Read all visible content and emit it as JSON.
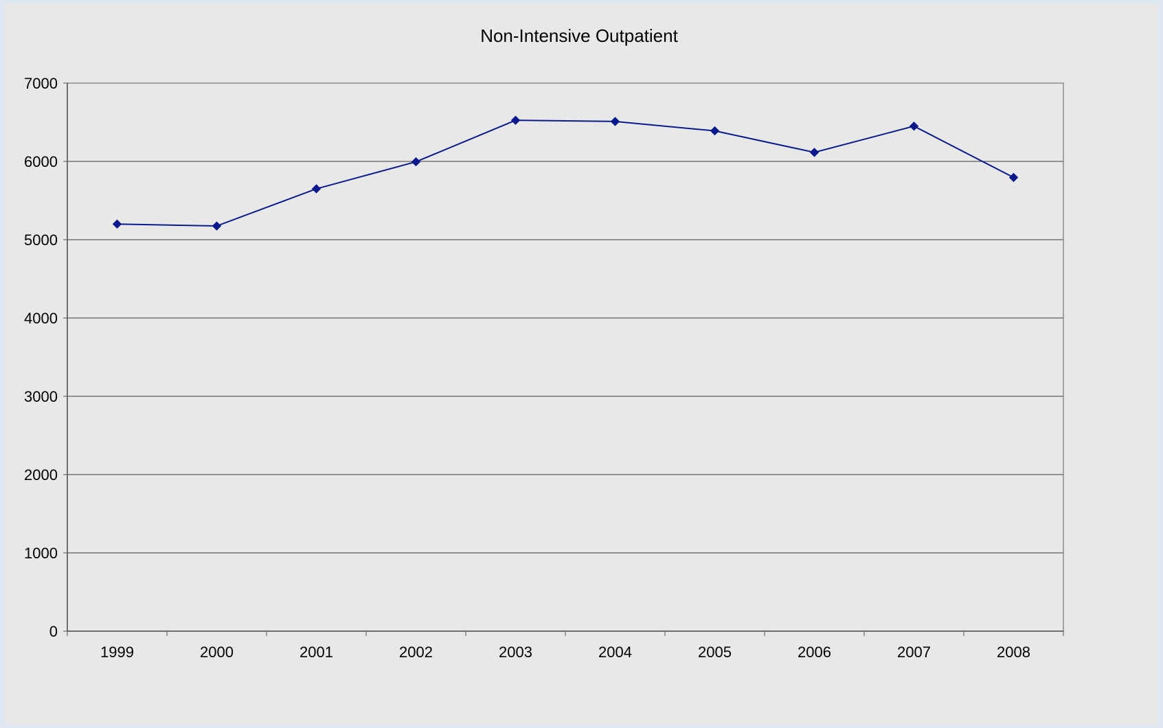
{
  "chart_data": {
    "type": "line",
    "title": "Non-Intensive Outpatient",
    "xlabel": "",
    "ylabel": "",
    "categories": [
      "1999",
      "2000",
      "2001",
      "2002",
      "2003",
      "2004",
      "2005",
      "2006",
      "2007",
      "2008"
    ],
    "series": [
      {
        "values": [
          5200,
          5175,
          5650,
          5995,
          6525,
          6510,
          6390,
          6115,
          6450,
          5795
        ]
      }
    ],
    "ylim": [
      0,
      7000
    ],
    "yticks": [
      "0",
      "1000",
      "2000",
      "3000",
      "4000",
      "5000",
      "6000",
      "7000"
    ],
    "grid": "horizontal",
    "legend": "none",
    "colors": {
      "line": "#0a1a8c",
      "marker": "#0a1a8c",
      "gridline": "#3a3a3a",
      "plot_background": "#e8e8e8",
      "outer_background": "#dfe8f2"
    }
  }
}
